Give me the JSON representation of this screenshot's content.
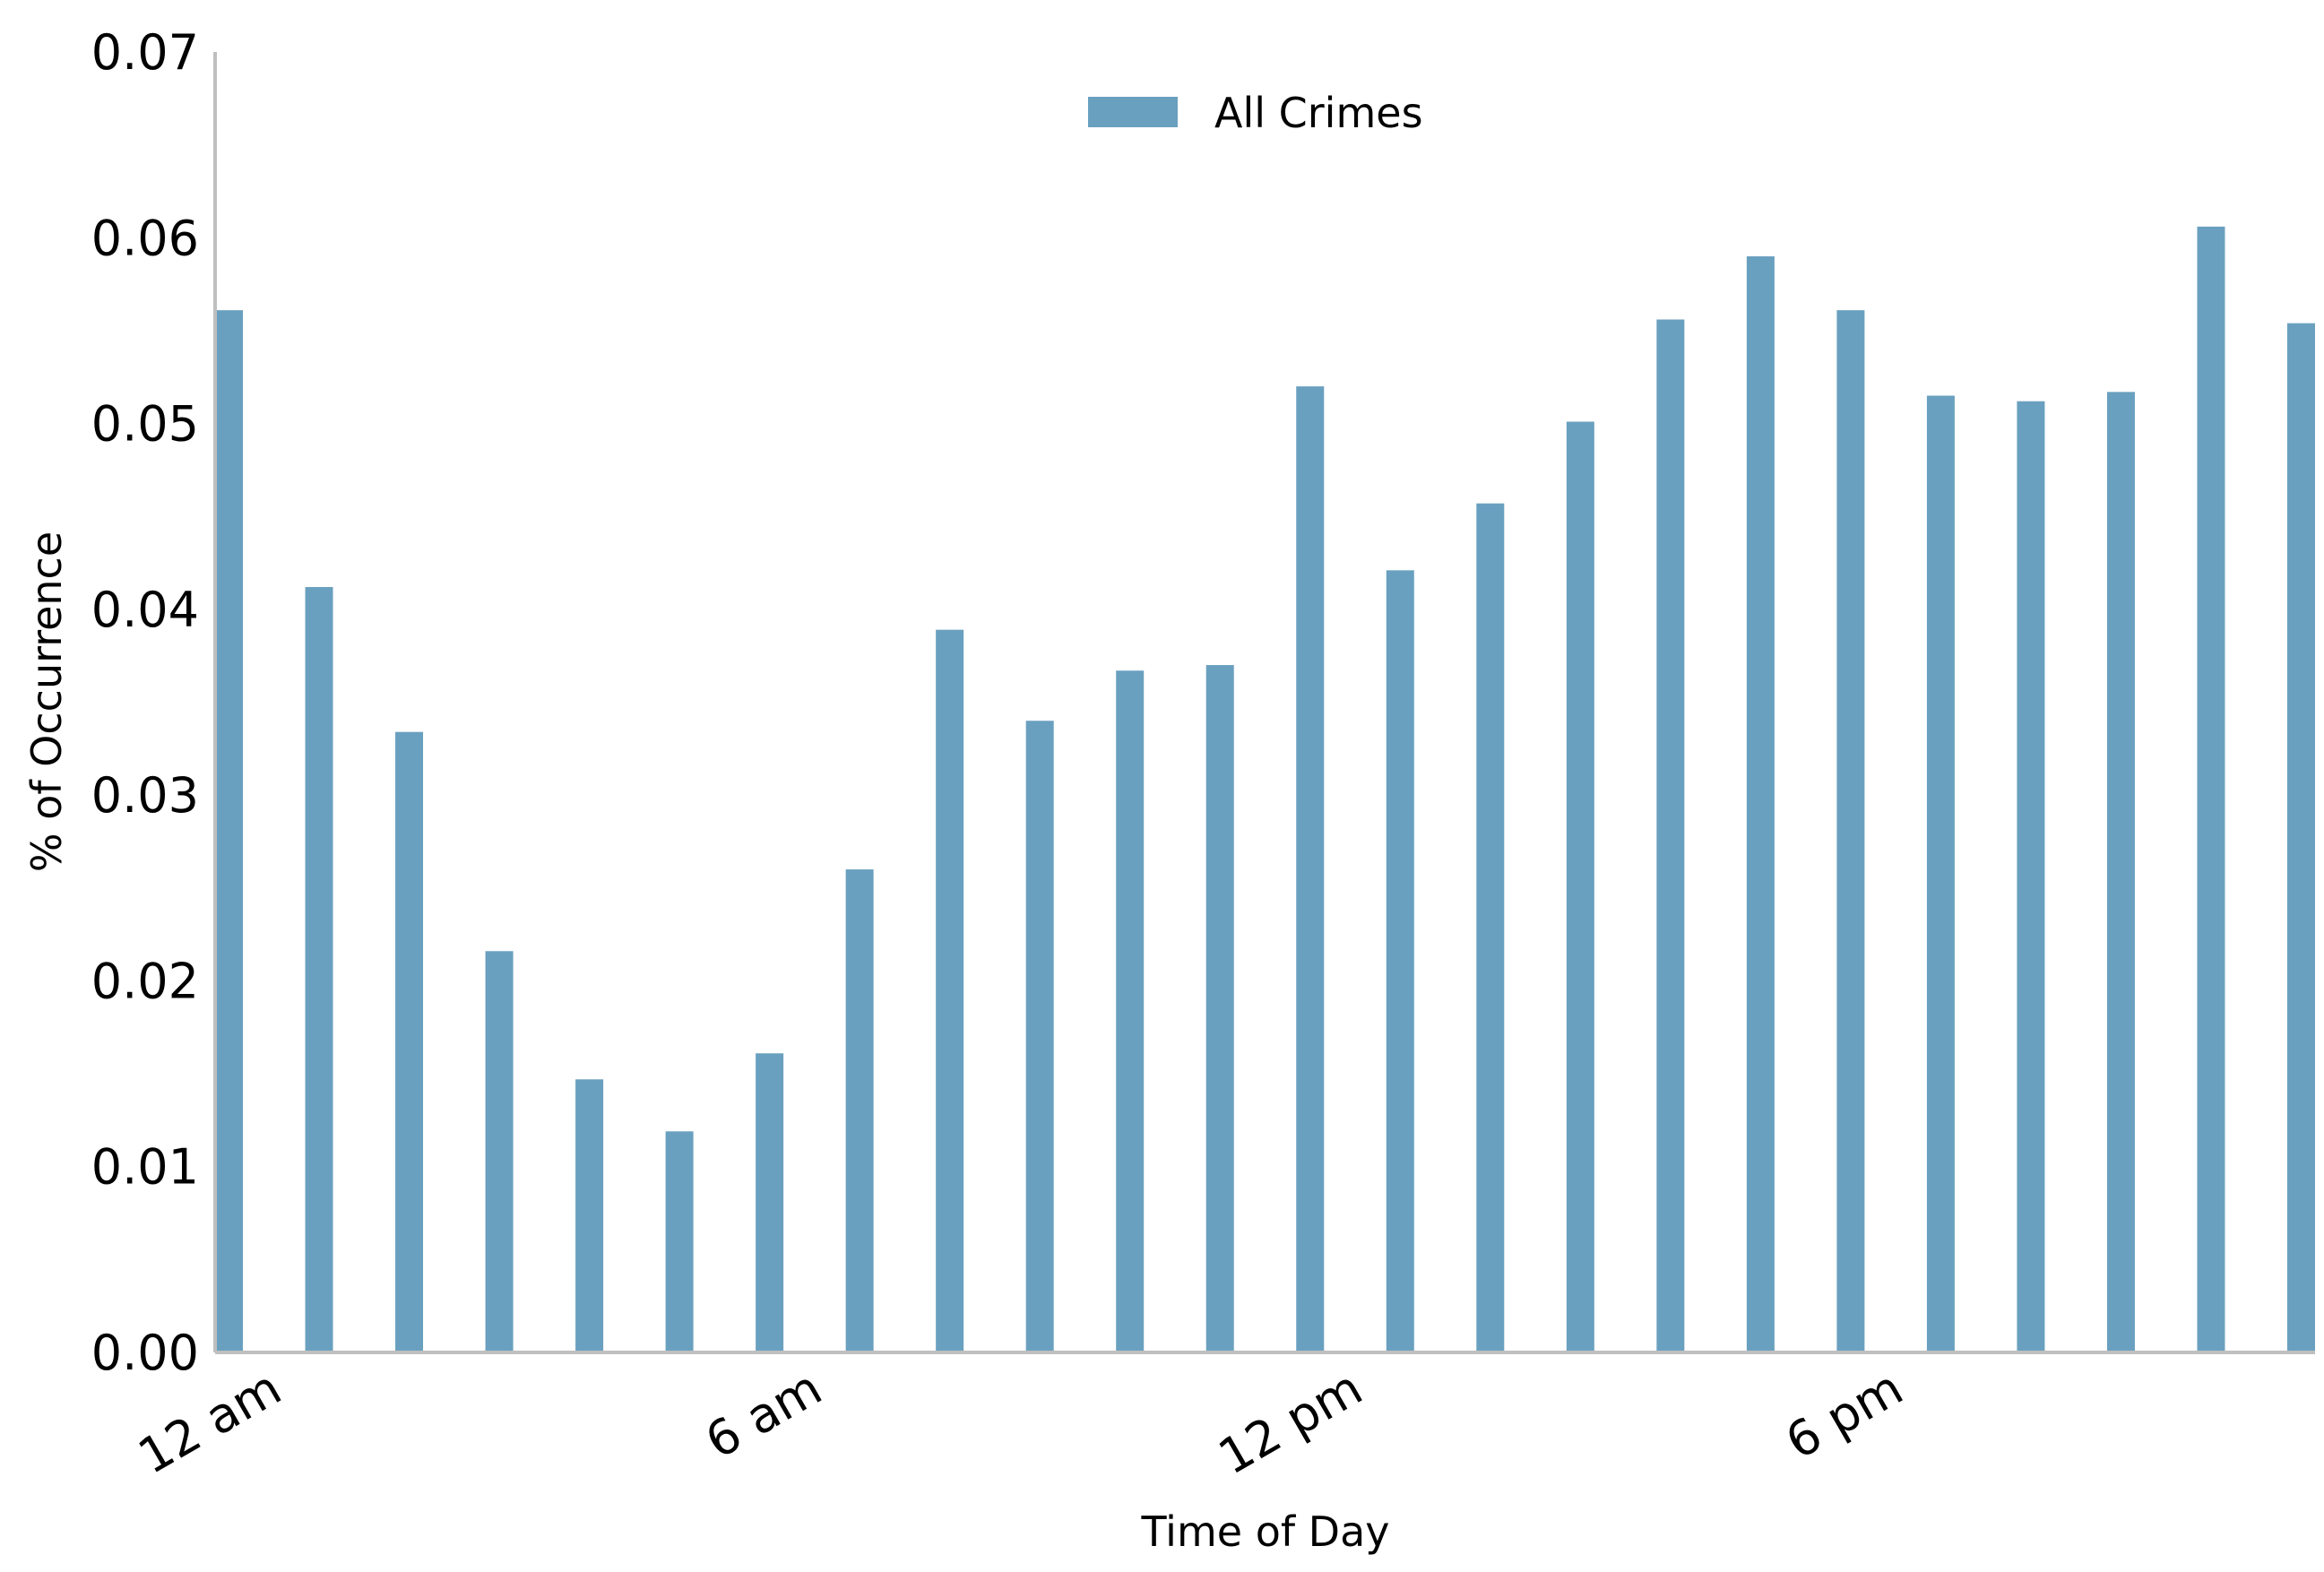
{
  "chart_data": {
    "type": "bar",
    "title": "",
    "xlabel": "Time of Day",
    "ylabel": "% of Occurrence",
    "ylim": [
      0,
      0.07
    ],
    "yticks": [
      "0.00",
      "0.01",
      "0.02",
      "0.03",
      "0.04",
      "0.05",
      "0.06",
      "0.07"
    ],
    "xtick_labels": [
      {
        "hour": 0,
        "label": "12 am"
      },
      {
        "hour": 6,
        "label": "6 am"
      },
      {
        "hour": 12,
        "label": "12 pm"
      },
      {
        "hour": 18,
        "label": "6 pm"
      }
    ],
    "categories": [
      0,
      1,
      2,
      3,
      4,
      5,
      6,
      7,
      8,
      9,
      10,
      11,
      12,
      13,
      14,
      15,
      16,
      17,
      18,
      19,
      20,
      21,
      22,
      23
    ],
    "series": [
      {
        "name": "All Crimes",
        "values": [
          0.0561,
          0.0412,
          0.0334,
          0.0216,
          0.0147,
          0.0119,
          0.0161,
          0.026,
          0.0389,
          0.034,
          0.0367,
          0.037,
          0.052,
          0.0421,
          0.0457,
          0.0501,
          0.0556,
          0.059,
          0.0561,
          0.0515,
          0.0512,
          0.0517,
          0.0606,
          0.0554
        ]
      }
    ],
    "legend_position": "upper-center",
    "grid": false,
    "colors": {
      "bar": "#6aa0bf",
      "axis": "#bfbfbf"
    }
  }
}
